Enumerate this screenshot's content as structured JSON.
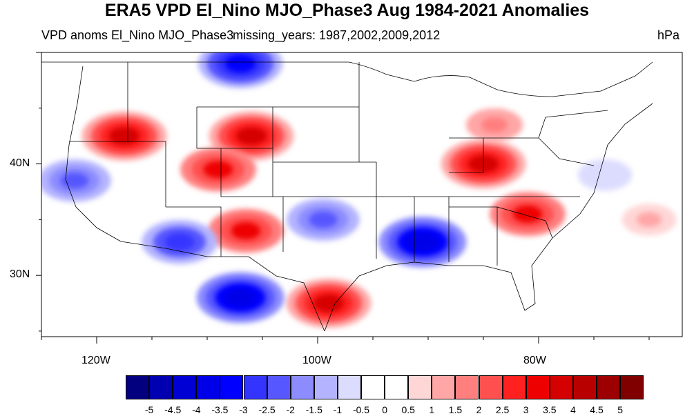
{
  "title": "ERA5 VPD El_Nino MJO_Phase3 Aug 1984-2021 Anomalies",
  "subtitle_left": "VPD anoms El_Nino MJO_Phase3",
  "subtitle_center": "missing_years: 1987,2002,2009,2012",
  "units": "hPa",
  "map": {
    "lon_labels": [
      {
        "lon": -120,
        "label": "120W"
      },
      {
        "lon": -100,
        "label": "100W"
      },
      {
        "lon": -80,
        "label": "80W"
      }
    ],
    "lat_labels": [
      {
        "lat": 40,
        "label": "40N"
      },
      {
        "lat": 30,
        "label": "30N"
      }
    ],
    "anomaly_features": [
      {
        "name": "northwest-positive",
        "lon": -117.5,
        "lat": 42.5,
        "value": 3.5
      },
      {
        "name": "wyoming-positive",
        "lon": -106,
        "lat": 42.5,
        "value": 3.5
      },
      {
        "name": "colorado-positive",
        "lon": -109,
        "lat": 39.5,
        "value": 3
      },
      {
        "name": "new-mexico-positive",
        "lon": -106.5,
        "lat": 34,
        "value": 3
      },
      {
        "name": "texas-positive",
        "lon": -99,
        "lat": 27.5,
        "value": 3.5
      },
      {
        "name": "ohio-valley-positive",
        "lon": -85,
        "lat": 40,
        "value": 3.5
      },
      {
        "name": "carolina-positive",
        "lon": -81,
        "lat": 35.5,
        "value": 3
      },
      {
        "name": "great-lakes-positive",
        "lon": -84,
        "lat": 43.5,
        "value": 1.5
      },
      {
        "name": "atlantic-positive",
        "lon": -70,
        "lat": 35,
        "value": 1
      },
      {
        "name": "montana-negative",
        "lon": -107,
        "lat": 49,
        "value": -3.5
      },
      {
        "name": "arizona-negative",
        "lon": -112.5,
        "lat": 33,
        "value": -3
      },
      {
        "name": "mexico-negative",
        "lon": -107,
        "lat": 28,
        "value": -4
      },
      {
        "name": "oklahoma-negative",
        "lon": -99.5,
        "lat": 35,
        "value": -2.5
      },
      {
        "name": "mississippi-negative",
        "lon": -90.5,
        "lat": 33,
        "value": -4
      },
      {
        "name": "california-negative",
        "lon": -122,
        "lat": 38.5,
        "value": -2.5
      },
      {
        "name": "atlantic-negative",
        "lon": -74,
        "lat": 39,
        "value": -1
      }
    ]
  },
  "colorbar": {
    "labels": [
      "-5",
      "-4.5",
      "-4",
      "-3.5",
      "-3",
      "-2.5",
      "-2",
      "-1.5",
      "-1",
      "-0.5",
      "0",
      "0.5",
      "1",
      "1.5",
      "2",
      "2.5",
      "3",
      "3.5",
      "4",
      "4.5",
      "5"
    ],
    "colors": [
      "#030080",
      "#0000b0",
      "#0000d4",
      "#0000e8",
      "#0000ff",
      "#3434ff",
      "#5757ff",
      "#8c8cff",
      "#b3b3ff",
      "#dcdcff",
      "#ffffff",
      "#ffffff",
      "#ffd6d6",
      "#ffa6a6",
      "#ff7f7f",
      "#ff5050",
      "#ff2020",
      "#ee0000",
      "#d50000",
      "#b90000",
      "#9c0000",
      "#800000"
    ]
  },
  "colors": {
    "land_border": "#000000",
    "frame": "#000000"
  }
}
